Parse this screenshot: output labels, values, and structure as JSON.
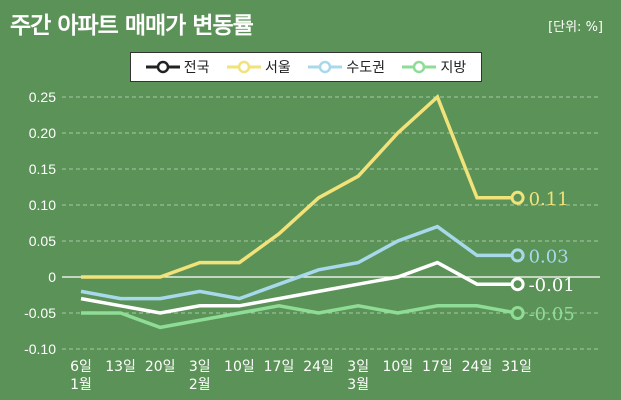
{
  "title": "주간 아파트 매매가 변동률",
  "unit": "[단위: %]",
  "colors": {
    "background": "#5b9257",
    "전국": "#ffffff",
    "서울": "#f2e27a",
    "수도권": "#a8d8ec",
    "지방": "#8fdc96"
  },
  "chart_data": {
    "type": "line",
    "categories": [
      "6일\n1월",
      "13일",
      "20일",
      "3일\n2월",
      "10일",
      "17일",
      "24일",
      "3일\n3월",
      "10일",
      "17일",
      "24일",
      "31일"
    ],
    "ylim": [
      -0.1,
      0.25
    ],
    "yticks": [
      "0.25",
      "0.20",
      "0.15",
      "0.10",
      "0.05",
      "0",
      "-0.05",
      "-0.10"
    ],
    "ytick_values": [
      0.25,
      0.2,
      0.15,
      0.1,
      0.05,
      0,
      -0.05,
      -0.1
    ],
    "grid": true,
    "legend_position": "top",
    "series": [
      {
        "name": "전국",
        "values": [
          -0.03,
          -0.04,
          -0.05,
          -0.04,
          -0.04,
          -0.03,
          -0.02,
          -0.01,
          0.0,
          0.02,
          -0.01,
          -0.01
        ],
        "end_label": "-0.01"
      },
      {
        "name": "서울",
        "values": [
          0.0,
          0.0,
          0.0,
          0.02,
          0.02,
          0.06,
          0.11,
          0.14,
          0.2,
          0.25,
          0.11,
          0.11
        ],
        "end_label": "0.11"
      },
      {
        "name": "수도권",
        "values": [
          -0.02,
          -0.03,
          -0.03,
          -0.02,
          -0.03,
          -0.01,
          0.01,
          0.02,
          0.05,
          0.07,
          0.03,
          0.03
        ],
        "end_label": "0.03"
      },
      {
        "name": "지방",
        "values": [
          -0.05,
          -0.05,
          -0.07,
          -0.06,
          -0.05,
          -0.04,
          -0.05,
          -0.04,
          -0.05,
          -0.04,
          -0.04,
          -0.05
        ],
        "end_label": "-0.05"
      }
    ]
  }
}
